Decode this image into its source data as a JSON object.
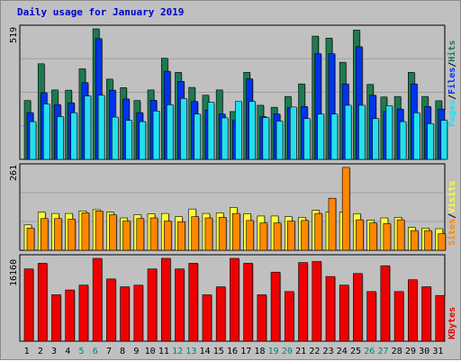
{
  "chart_data": {
    "type": "bar",
    "title": "Daily usage for January 2019",
    "categories": [
      "1",
      "2",
      "3",
      "4",
      "5",
      "6",
      "7",
      "8",
      "9",
      "10",
      "11",
      "12",
      "13",
      "14",
      "15",
      "16",
      "17",
      "18",
      "19",
      "20",
      "21",
      "22",
      "23",
      "24",
      "25",
      "26",
      "27",
      "28",
      "29",
      "30",
      "31"
    ],
    "weekend_days": [
      "5",
      "6",
      "12",
      "13",
      "19",
      "20",
      "26",
      "27"
    ],
    "colors": {
      "hits": "#1e7a50",
      "files": "#0033ee",
      "pages": "#22e0f0",
      "visits": "#ffff33",
      "sites": "#ff8800",
      "kbytes": "#ee0000",
      "weekend_tick": "#00886a",
      "weekday_tick": "#000000",
      "plot_bg": "#c0c0c0",
      "frame_bg": "#c0c0c0"
    },
    "panels": [
      {
        "id": "hits-files-pages",
        "ymax_label": "519",
        "ymax": 519,
        "legend": [
          {
            "text": "Pages",
            "color": "#22e0f0"
          },
          {
            "text": "/",
            "color": "#000000"
          },
          {
            "text": "Files",
            "color": "#0033ee"
          },
          {
            "text": "/",
            "color": "#000000"
          },
          {
            "text": "Hits",
            "color": "#1e7a50"
          }
        ],
        "series": [
          {
            "name": "Hits",
            "color": "#1e7a50",
            "values": [
              234,
              380,
              276,
              275,
              360,
              519,
              319,
              285,
              234,
              276,
              402,
              346,
              286,
              255,
              276,
              190,
              346,
              215,
              207,
              250,
              300,
              490,
              482,
              386,
              514,
              298,
              248,
              250,
              346,
              250,
              233
            ]
          },
          {
            "name": "Files",
            "color": "#0033ee",
            "values": [
              186,
              265,
              218,
              225,
              305,
              480,
              275,
              240,
              186,
              235,
              350,
              310,
              230,
              195,
              180,
              155,
              320,
              170,
              180,
              205,
              210,
              420,
              420,
              300,
              448,
              255,
              190,
              200,
              300,
              210,
              200
            ]
          },
          {
            "name": "Pages",
            "color": "#22e0f0",
            "values": [
              150,
              220,
              170,
              185,
              252,
              255,
              168,
              155,
              150,
              192,
              217,
              242,
              180,
              227,
              165,
              230,
              230,
              166,
              152,
              208,
              162,
              180,
              180,
              215,
              215,
              162,
              213,
              150,
              185,
              142,
              155
            ]
          }
        ]
      },
      {
        "id": "visits-sites",
        "ymax_label": "261",
        "ymax": 261,
        "legend": [
          {
            "text": "Sites",
            "color": "#ff8800"
          },
          {
            "text": "/",
            "color": "#000000"
          },
          {
            "text": "Visits",
            "color": "#ffff33"
          }
        ],
        "series": [
          {
            "name": "Visits",
            "color": "#ffff33",
            "values": [
              80,
              120,
              116,
              116,
              124,
              128,
              120,
              102,
              112,
              115,
              116,
              106,
              130,
              116,
              118,
              135,
              115,
              108,
              108,
              106,
              104,
              126,
              120,
              120,
              115,
              95,
              102,
              104,
              72,
              70,
              68
            ]
          },
          {
            "name": "Sites",
            "color": "#ff8800",
            "values": [
              70,
              100,
              100,
              98,
              118,
              124,
              112,
              92,
              100,
              102,
              92,
              90,
              106,
              102,
              104,
              116,
              94,
              86,
              86,
              92,
              94,
              116,
              164,
              261,
              96,
              86,
              84,
              96,
              62,
              62,
              52
            ]
          }
        ]
      },
      {
        "id": "kbytes",
        "ymax_label": "16160",
        "ymax": 16160,
        "legend": [
          {
            "text": "KBytes",
            "color": "#ee0000"
          }
        ],
        "series": [
          {
            "name": "KBytes",
            "color": "#ee0000",
            "values": [
              14100,
              15200,
              9060,
              10000,
              10940,
              16160,
              12150,
              10620,
              10930,
              14100,
              16160,
              14100,
              15200,
              9060,
              10620,
              16160,
              15200,
              9060,
              13480,
              9690,
              15350,
              15550,
              12620,
              10940,
              13210,
              9690,
              14720,
              9690,
              12000,
              10630,
              8920
            ]
          }
        ]
      }
    ]
  }
}
